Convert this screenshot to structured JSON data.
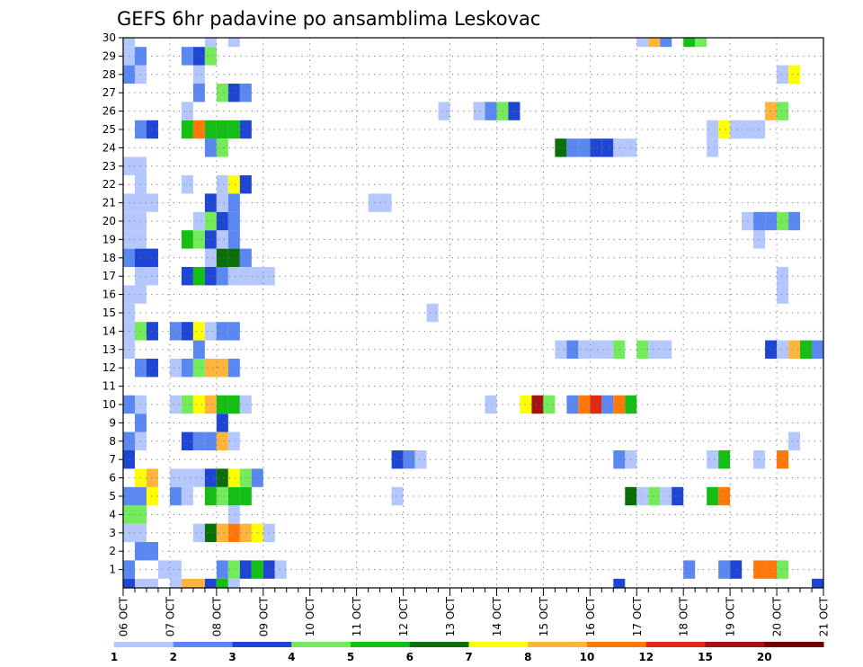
{
  "chart_data": {
    "type": "heatmap",
    "title": "GEFS 6hr padavine po ansamblima Leskovac",
    "xlabel": "",
    "ylabel": "",
    "x_tick_labels": [
      "06 OCT",
      "07 OCT",
      "08 OCT",
      "09 OCT",
      "10 OCT",
      "11 OCT",
      "12 OCT",
      "13 OCT",
      "14 OCT",
      "15 OCT",
      "16 OCT",
      "17 OCT",
      "18 OCT",
      "19 OCT",
      "20 OCT",
      "21 OCT"
    ],
    "x_unit": "6-hour steps from 06 OCT 00Z",
    "xlim": [
      0,
      60
    ],
    "y_tick_labels": [
      "1",
      "2",
      "3",
      "4",
      "5",
      "6",
      "7",
      "8",
      "9",
      "10",
      "11",
      "12",
      "13",
      "14",
      "15",
      "16",
      "17",
      "18",
      "19",
      "20",
      "21",
      "22",
      "23",
      "24",
      "25",
      "26",
      "27",
      "28",
      "29",
      "30"
    ],
    "ylim": [
      0,
      30
    ],
    "levels": [
      1,
      2,
      3,
      4,
      5,
      6,
      7,
      8,
      10,
      12,
      15,
      20
    ],
    "level_labels": [
      "1",
      "2",
      "3",
      "4",
      "5",
      "6",
      "7",
      "8",
      "10",
      "12",
      "15",
      "20"
    ],
    "colors": [
      "#b4c8ff",
      "#5a87f0",
      "#1e46d2",
      "#73eb5a",
      "#14be14",
      "#0a6e0a",
      "#ffff00",
      "#ffb43c",
      "#ff780a",
      "#e12814",
      "#a01414",
      "#6e0000"
    ],
    "grid": true,
    "cells": [
      [
        1,
        0,
        2
      ],
      [
        1,
        3,
        1
      ],
      [
        1,
        4,
        1
      ],
      [
        1,
        8,
        2
      ],
      [
        1,
        9,
        4
      ],
      [
        1,
        10,
        3
      ],
      [
        1,
        11,
        5
      ],
      [
        1,
        12,
        3
      ],
      [
        1,
        13,
        1
      ],
      [
        1,
        48,
        2
      ],
      [
        1,
        51,
        2
      ],
      [
        1,
        52,
        3
      ],
      [
        1,
        54,
        9
      ],
      [
        1,
        55,
        9
      ],
      [
        1,
        56,
        4
      ],
      [
        2,
        1,
        2
      ],
      [
        2,
        2,
        2
      ],
      [
        3,
        0,
        1
      ],
      [
        3,
        1,
        1
      ],
      [
        3,
        6,
        1
      ],
      [
        3,
        7,
        6
      ],
      [
        3,
        8,
        8
      ],
      [
        3,
        9,
        9
      ],
      [
        3,
        10,
        8
      ],
      [
        3,
        11,
        7
      ],
      [
        3,
        12,
        1
      ],
      [
        4,
        0,
        4
      ],
      [
        4,
        1,
        4
      ],
      [
        4,
        9,
        1
      ],
      [
        5,
        0,
        2
      ],
      [
        5,
        1,
        2
      ],
      [
        5,
        2,
        7
      ],
      [
        5,
        4,
        2
      ],
      [
        5,
        5,
        1
      ],
      [
        5,
        7,
        5
      ],
      [
        5,
        8,
        4
      ],
      [
        5,
        9,
        5
      ],
      [
        5,
        10,
        5
      ],
      [
        5,
        23,
        1
      ],
      [
        5,
        43,
        6
      ],
      [
        5,
        44,
        1
      ],
      [
        5,
        45,
        4
      ],
      [
        5,
        46,
        1
      ],
      [
        5,
        47,
        3
      ],
      [
        5,
        50,
        5
      ],
      [
        5,
        51,
        9
      ],
      [
        6,
        1,
        7
      ],
      [
        6,
        2,
        8
      ],
      [
        6,
        4,
        1
      ],
      [
        6,
        5,
        1
      ],
      [
        6,
        6,
        1
      ],
      [
        6,
        7,
        3
      ],
      [
        6,
        8,
        6
      ],
      [
        6,
        9,
        7
      ],
      [
        6,
        10,
        4
      ],
      [
        6,
        11,
        2
      ],
      [
        7,
        0,
        3
      ],
      [
        7,
        23,
        3
      ],
      [
        7,
        24,
        2
      ],
      [
        7,
        25,
        1
      ],
      [
        7,
        42,
        2
      ],
      [
        7,
        43,
        1
      ],
      [
        7,
        50,
        1
      ],
      [
        7,
        51,
        5
      ],
      [
        7,
        54,
        1
      ],
      [
        7,
        56,
        9
      ],
      [
        8,
        0,
        2
      ],
      [
        8,
        1,
        1
      ],
      [
        8,
        5,
        3
      ],
      [
        8,
        6,
        2
      ],
      [
        8,
        7,
        2
      ],
      [
        8,
        8,
        8
      ],
      [
        8,
        9,
        1
      ],
      [
        8,
        57,
        1
      ],
      [
        9,
        1,
        2
      ],
      [
        9,
        8,
        3
      ],
      [
        10,
        0,
        2
      ],
      [
        10,
        1,
        1
      ],
      [
        10,
        4,
        1
      ],
      [
        10,
        5,
        4
      ],
      [
        10,
        6,
        7
      ],
      [
        10,
        7,
        8
      ],
      [
        10,
        8,
        5
      ],
      [
        10,
        9,
        5
      ],
      [
        10,
        10,
        1
      ],
      [
        10,
        31,
        1
      ],
      [
        10,
        34,
        7
      ],
      [
        10,
        35,
        11
      ],
      [
        10,
        36,
        4
      ],
      [
        10,
        38,
        2
      ],
      [
        10,
        39,
        9
      ],
      [
        10,
        40,
        10
      ],
      [
        10,
        41,
        2
      ],
      [
        10,
        42,
        9
      ],
      [
        10,
        43,
        5
      ],
      [
        12,
        1,
        2
      ],
      [
        12,
        2,
        3
      ],
      [
        12,
        4,
        1
      ],
      [
        12,
        5,
        2
      ],
      [
        12,
        6,
        4
      ],
      [
        12,
        7,
        8
      ],
      [
        12,
        8,
        8
      ],
      [
        12,
        9,
        2
      ],
      [
        13,
        0,
        1
      ],
      [
        13,
        6,
        2
      ],
      [
        13,
        37,
        1
      ],
      [
        13,
        38,
        2
      ],
      [
        13,
        39,
        1
      ],
      [
        13,
        40,
        1
      ],
      [
        13,
        41,
        1
      ],
      [
        13,
        42,
        4
      ],
      [
        13,
        44,
        4
      ],
      [
        13,
        45,
        1
      ],
      [
        13,
        46,
        1
      ],
      [
        13,
        55,
        3
      ],
      [
        13,
        56,
        1
      ],
      [
        13,
        57,
        8
      ],
      [
        13,
        58,
        5
      ],
      [
        13,
        59,
        2
      ],
      [
        14,
        0,
        1
      ],
      [
        14,
        1,
        4
      ],
      [
        14,
        2,
        3
      ],
      [
        14,
        4,
        2
      ],
      [
        14,
        5,
        3
      ],
      [
        14,
        6,
        7
      ],
      [
        14,
        7,
        1
      ],
      [
        14,
        8,
        2
      ],
      [
        14,
        9,
        2
      ],
      [
        15,
        0,
        1
      ],
      [
        15,
        26,
        1
      ],
      [
        16,
        0,
        1
      ],
      [
        16,
        1,
        1
      ],
      [
        16,
        56,
        1
      ],
      [
        17,
        1,
        1
      ],
      [
        17,
        2,
        1
      ],
      [
        17,
        5,
        3
      ],
      [
        17,
        6,
        5
      ],
      [
        17,
        7,
        3
      ],
      [
        17,
        8,
        2
      ],
      [
        17,
        9,
        1
      ],
      [
        17,
        10,
        1
      ],
      [
        17,
        11,
        1
      ],
      [
        17,
        12,
        1
      ],
      [
        17,
        56,
        1
      ],
      [
        18,
        0,
        2
      ],
      [
        18,
        1,
        3
      ],
      [
        18,
        2,
        3
      ],
      [
        18,
        7,
        1
      ],
      [
        18,
        8,
        6
      ],
      [
        18,
        9,
        6
      ],
      [
        18,
        10,
        2
      ],
      [
        19,
        0,
        1
      ],
      [
        19,
        1,
        1
      ],
      [
        19,
        5,
        5
      ],
      [
        19,
        6,
        4
      ],
      [
        19,
        7,
        3
      ],
      [
        19,
        8,
        1
      ],
      [
        19,
        9,
        2
      ],
      [
        19,
        54,
        1
      ],
      [
        20,
        0,
        1
      ],
      [
        20,
        1,
        1
      ],
      [
        20,
        6,
        1
      ],
      [
        20,
        7,
        4
      ],
      [
        20,
        8,
        3
      ],
      [
        20,
        9,
        2
      ],
      [
        20,
        53,
        1
      ],
      [
        20,
        54,
        2
      ],
      [
        20,
        55,
        2
      ],
      [
        20,
        56,
        4
      ],
      [
        20,
        57,
        2
      ],
      [
        21,
        0,
        1
      ],
      [
        21,
        1,
        1
      ],
      [
        21,
        2,
        1
      ],
      [
        21,
        7,
        3
      ],
      [
        21,
        8,
        1
      ],
      [
        21,
        9,
        2
      ],
      [
        21,
        21,
        1
      ],
      [
        21,
        22,
        1
      ],
      [
        22,
        1,
        1
      ],
      [
        22,
        5,
        1
      ],
      [
        22,
        8,
        1
      ],
      [
        22,
        9,
        7
      ],
      [
        22,
        10,
        3
      ],
      [
        23,
        0,
        1
      ],
      [
        23,
        1,
        1
      ],
      [
        24,
        7,
        2
      ],
      [
        24,
        8,
        4
      ],
      [
        24,
        37,
        6
      ],
      [
        24,
        38,
        2
      ],
      [
        24,
        39,
        2
      ],
      [
        24,
        40,
        3
      ],
      [
        24,
        41,
        3
      ],
      [
        24,
        42,
        1
      ],
      [
        24,
        43,
        1
      ],
      [
        24,
        50,
        1
      ],
      [
        25,
        1,
        2
      ],
      [
        25,
        2,
        3
      ],
      [
        25,
        5,
        5
      ],
      [
        25,
        6,
        9
      ],
      [
        25,
        7,
        5
      ],
      [
        25,
        8,
        5
      ],
      [
        25,
        9,
        5
      ],
      [
        25,
        10,
        3
      ],
      [
        25,
        50,
        1
      ],
      [
        25,
        51,
        7
      ],
      [
        25,
        52,
        1
      ],
      [
        25,
        53,
        1
      ],
      [
        25,
        54,
        1
      ],
      [
        26,
        5,
        1
      ],
      [
        26,
        27,
        1
      ],
      [
        26,
        30,
        1
      ],
      [
        26,
        31,
        2
      ],
      [
        26,
        32,
        4
      ],
      [
        26,
        33,
        3
      ],
      [
        26,
        55,
        8
      ],
      [
        26,
        56,
        4
      ],
      [
        27,
        6,
        2
      ],
      [
        27,
        8,
        4
      ],
      [
        27,
        9,
        3
      ],
      [
        27,
        10,
        2
      ],
      [
        28,
        0,
        2
      ],
      [
        28,
        1,
        1
      ],
      [
        28,
        6,
        1
      ],
      [
        28,
        56,
        1
      ],
      [
        28,
        57,
        7
      ],
      [
        29,
        0,
        1
      ],
      [
        29,
        1,
        2
      ],
      [
        29,
        5,
        2
      ],
      [
        29,
        6,
        3
      ],
      [
        29,
        7,
        4
      ],
      [
        30,
        0,
        1
      ],
      [
        30,
        7,
        1
      ],
      [
        30,
        9,
        1
      ],
      [
        30,
        44,
        1
      ],
      [
        30,
        45,
        8
      ],
      [
        30,
        46,
        2
      ],
      [
        30,
        48,
        5
      ],
      [
        30,
        49,
        4
      ],
      [
        0,
        0,
        3
      ],
      [
        0,
        1,
        1
      ],
      [
        0,
        2,
        1
      ],
      [
        0,
        4,
        1
      ],
      [
        0,
        5,
        8
      ],
      [
        0,
        6,
        8
      ],
      [
        0,
        7,
        3
      ],
      [
        0,
        8,
        5
      ],
      [
        0,
        9,
        1
      ],
      [
        0,
        42,
        3
      ],
      [
        0,
        59,
        3
      ]
    ]
  }
}
